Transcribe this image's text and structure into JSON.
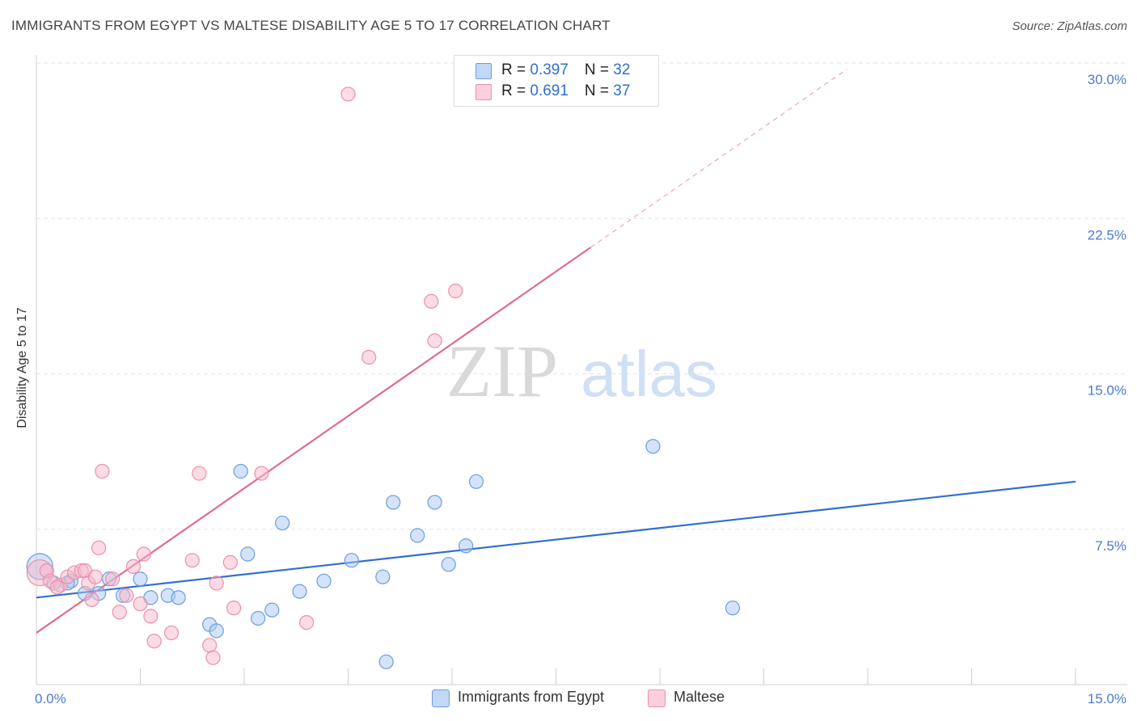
{
  "title": "IMMIGRANTS FROM EGYPT VS MALTESE DISABILITY AGE 5 TO 17 CORRELATION CHART",
  "source": "Source: ZipAtlas.com",
  "watermark": {
    "zip": "ZIP",
    "atlas": "atlas"
  },
  "colors": {
    "egypt_fill": "#a9c8f3",
    "egypt_stroke": "#6a9edf",
    "egypt_line": "#2f6fd0",
    "maltese_fill": "#f7b8c9",
    "maltese_stroke": "#ec8fab",
    "maltese_line": "#e06a92",
    "tick_text": "#4a7bd0",
    "grid": "#e3e3e3"
  },
  "legend": {
    "rows": [
      {
        "r_label": "R = ",
        "r_value": "0.397",
        "n_label": "N = ",
        "n_value": "32"
      },
      {
        "r_label": "R = ",
        "r_value": "0.691",
        "n_label": "N = ",
        "n_value": "37"
      }
    ]
  },
  "bottom_legend": [
    "Immigrants from Egypt",
    "Maltese"
  ],
  "chart_data": {
    "type": "scatter",
    "title": "IMMIGRANTS FROM EGYPT VS MALTESE DISABILITY AGE 5 TO 17 CORRELATION CHART",
    "xlabel": "",
    "ylabel": "Disability Age 5 to 17",
    "xlim": [
      0,
      15
    ],
    "ylim": [
      0,
      30
    ],
    "x_tick_labels": [
      "0.0%",
      "15.0%"
    ],
    "y_ticks": [
      {
        "value": 7.5,
        "label": "7.5%"
      },
      {
        "value": 15,
        "label": "15.0%"
      },
      {
        "value": 22.5,
        "label": "22.5%"
      },
      {
        "value": 30,
        "label": "30.0%"
      }
    ],
    "grid": "horizontal-dashed",
    "legend_position": "top-center",
    "series": [
      {
        "name": "Immigrants from Egypt",
        "R": 0.397,
        "N": 32,
        "trend": {
          "x0": 0,
          "y0": 4.2,
          "x1": 15,
          "y1": 9.8,
          "dashed_from_x": null
        },
        "points": [
          [
            0.05,
            5.7
          ],
          [
            0.25,
            4.9
          ],
          [
            0.5,
            5.0
          ],
          [
            0.7,
            4.4
          ],
          [
            0.9,
            4.4
          ],
          [
            1.05,
            5.1
          ],
          [
            1.25,
            4.3
          ],
          [
            1.5,
            5.1
          ],
          [
            1.65,
            4.2
          ],
          [
            1.9,
            4.3
          ],
          [
            2.05,
            4.2
          ],
          [
            2.5,
            2.9
          ],
          [
            2.6,
            2.6
          ],
          [
            2.95,
            10.3
          ],
          [
            3.05,
            6.3
          ],
          [
            3.2,
            3.2
          ],
          [
            3.4,
            3.6
          ],
          [
            3.55,
            7.8
          ],
          [
            3.8,
            4.5
          ],
          [
            4.15,
            5.0
          ],
          [
            4.55,
            6.0
          ],
          [
            5.0,
            5.2
          ],
          [
            5.05,
            1.1
          ],
          [
            5.15,
            8.8
          ],
          [
            5.5,
            7.2
          ],
          [
            5.75,
            8.8
          ],
          [
            5.95,
            5.8
          ],
          [
            6.2,
            6.7
          ],
          [
            6.35,
            9.8
          ],
          [
            8.9,
            11.5
          ],
          [
            10.05,
            3.7
          ],
          [
            0.45,
            4.9
          ]
        ]
      },
      {
        "name": "Maltese",
        "R": 0.691,
        "N": 37,
        "trend": {
          "x0": 0,
          "y0": 2.5,
          "x1": 8.0,
          "y1": 21.1,
          "dashed_from_x": 8.0,
          "dashed_to_x": 11.7
        },
        "points": [
          [
            0.05,
            5.4
          ],
          [
            0.15,
            5.5
          ],
          [
            0.2,
            5.0
          ],
          [
            0.35,
            4.8
          ],
          [
            0.45,
            5.2
          ],
          [
            0.55,
            5.4
          ],
          [
            0.65,
            5.5
          ],
          [
            0.7,
            5.5
          ],
          [
            0.75,
            4.9
          ],
          [
            0.8,
            4.1
          ],
          [
            0.85,
            5.2
          ],
          [
            0.9,
            6.6
          ],
          [
            0.95,
            10.3
          ],
          [
            1.1,
            5.1
          ],
          [
            1.2,
            3.5
          ],
          [
            1.3,
            4.3
          ],
          [
            1.4,
            5.7
          ],
          [
            1.5,
            3.9
          ],
          [
            1.55,
            6.3
          ],
          [
            1.65,
            3.3
          ],
          [
            1.7,
            2.1
          ],
          [
            1.95,
            2.5
          ],
          [
            2.25,
            6.0
          ],
          [
            2.35,
            10.2
          ],
          [
            2.5,
            1.9
          ],
          [
            2.55,
            1.3
          ],
          [
            2.6,
            4.9
          ],
          [
            2.8,
            5.9
          ],
          [
            2.85,
            3.7
          ],
          [
            3.25,
            10.2
          ],
          [
            3.9,
            3.0
          ],
          [
            4.5,
            28.5
          ],
          [
            4.8,
            15.8
          ],
          [
            5.7,
            18.5
          ],
          [
            5.75,
            16.6
          ],
          [
            6.05,
            19.0
          ],
          [
            0.3,
            4.7
          ]
        ]
      }
    ]
  }
}
